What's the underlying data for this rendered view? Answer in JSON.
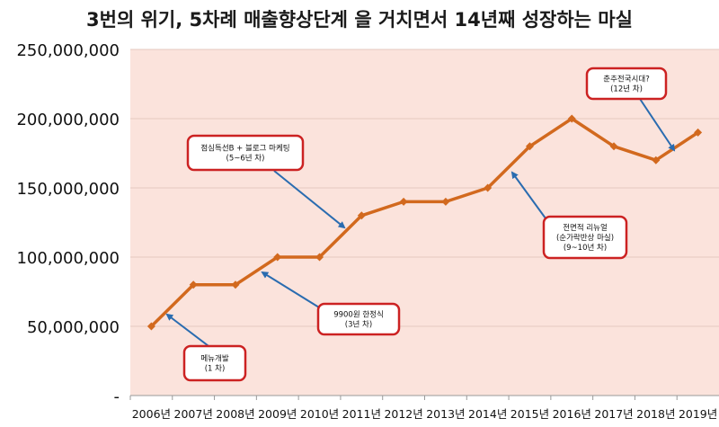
{
  "chart_data": {
    "type": "line",
    "title": "3번의 위기, 5차례 매출향상단계 을 거치면서 14년째 성장하는 마실",
    "xlabel": "",
    "ylabel": "",
    "categories": [
      "2006년",
      "2007년",
      "2008년",
      "2009년",
      "2010년",
      "2011년",
      "2012년",
      "2013년",
      "2014년",
      "2015년",
      "2016년",
      "2017년",
      "2018년",
      "2019년"
    ],
    "series": [
      {
        "values": [
          50000000,
          80000000,
          80000000,
          100000000,
          100000000,
          130000000,
          140000000,
          140000000,
          150000000,
          180000000,
          200000000,
          180000000,
          170000000,
          190000000
        ]
      }
    ],
    "ylim": [
      0,
      250000000
    ],
    "y_ticks": [
      {
        "value": 0,
        "label": "-"
      },
      {
        "value": 50000000,
        "label": "50,000,000"
      },
      {
        "value": 100000000,
        "label": "100,000,000"
      },
      {
        "value": 150000000,
        "label": "150,000,000"
      },
      {
        "value": 200000000,
        "label": "200,000,000"
      },
      {
        "value": 250000000,
        "label": "250,000,000"
      }
    ],
    "grid": true,
    "colors": {
      "line": "#d2691e",
      "plot_bg": "#fbe3dc",
      "grid": "#e4c8bf",
      "callout_border": "#cc2222",
      "arrow": "#2a6cb0"
    },
    "annotations": [
      {
        "lines": [
          "메뉴개발",
          "(1 차)"
        ],
        "target_index": 0
      },
      {
        "lines": [
          "9900원 한정식",
          "(3년 차)"
        ],
        "target_index": 2
      },
      {
        "lines": [
          "점심특선B + 블로그 마케팅",
          "(5~6년 차)"
        ],
        "target_index": 5
      },
      {
        "lines": [
          "전면적 리뉴얼",
          "(순가락반상 마실)",
          "(9~10년 차)"
        ],
        "target_index": 8
      },
      {
        "lines": [
          "춘추전국시대?",
          "(12년 차)"
        ],
        "target_index": 12
      }
    ]
  }
}
